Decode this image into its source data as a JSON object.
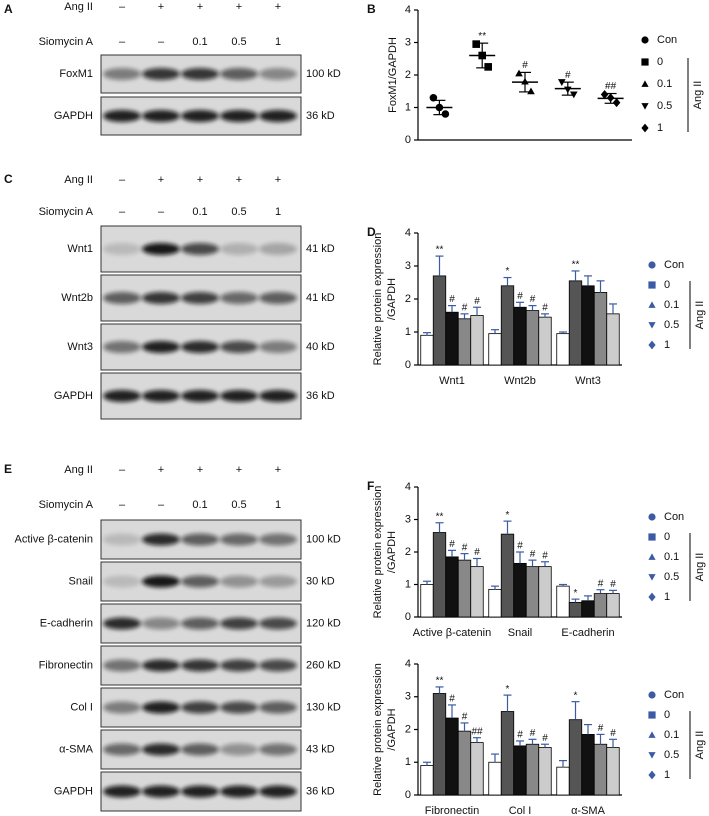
{
  "blots": [
    {
      "label": "A",
      "treatments": [
        {
          "name": "Ang II",
          "lanes": [
            "–",
            "+",
            "+",
            "+",
            "+"
          ]
        },
        {
          "name": "Siomycin A",
          "lanes": [
            "–",
            "–",
            "0.1",
            "0.5",
            "1"
          ]
        }
      ],
      "bands": [
        {
          "name": "FoxM1",
          "size": "100 kD"
        },
        {
          "name": "GAPDH",
          "size": "36 kD"
        }
      ]
    },
    {
      "label": "C",
      "treatments": [
        {
          "name": "Ang II",
          "lanes": [
            "–",
            "+",
            "+",
            "+",
            "+"
          ]
        },
        {
          "name": "Siomycin A",
          "lanes": [
            "–",
            "–",
            "0.1",
            "0.5",
            "1"
          ]
        }
      ],
      "bands": [
        {
          "name": "Wnt1",
          "size": "41 kD"
        },
        {
          "name": "Wnt2b",
          "size": "41 kD"
        },
        {
          "name": "Wnt3",
          "size": "40 kD"
        },
        {
          "name": "GAPDH",
          "size": "36 kD"
        }
      ]
    },
    {
      "label": "E",
      "treatments": [
        {
          "name": "Ang II",
          "lanes": [
            "–",
            "+",
            "+",
            "+",
            "+"
          ]
        },
        {
          "name": "Siomycin A",
          "lanes": [
            "–",
            "–",
            "0.1",
            "0.5",
            "1"
          ]
        }
      ],
      "bands": [
        {
          "name": "Active β-catenin",
          "size": "100 kD"
        },
        {
          "name": "Snail",
          "size": "30 kD"
        },
        {
          "name": "E-cadherin",
          "size": "120 kD"
        },
        {
          "name": "Fibronectin",
          "size": "260 kD"
        },
        {
          "name": "Col I",
          "size": "130 kD"
        },
        {
          "name": "α-SMA",
          "size": "43 kD"
        },
        {
          "name": "GAPDH",
          "size": "36 kD"
        }
      ]
    }
  ],
  "chart_data": [
    {
      "type": "dotplot",
      "label": "B",
      "ylabel": [
        "FoxM1/GAPDH"
      ],
      "categories": [
        null
      ],
      "ylim": [
        0,
        4
      ],
      "yticks": [
        0,
        1,
        2,
        3,
        4
      ],
      "marker_color": "#000000",
      "group_label": "Ang II",
      "series": [
        {
          "name": "Con",
          "marker": "circle",
          "color": "#000000",
          "values": [
            1.0
          ],
          "errors": [
            0.22
          ],
          "points": [
            [
              1.3,
              1.0,
              0.8
            ]
          ],
          "annotations": [
            null
          ]
        },
        {
          "name": "0",
          "marker": "square",
          "color": "#000000",
          "values": [
            2.6
          ],
          "errors": [
            0.38
          ],
          "points": [
            [
              2.95,
              2.6,
              2.25
            ]
          ],
          "annotations": [
            "**"
          ]
        },
        {
          "name": "0.1",
          "marker": "triangle-up",
          "color": "#000000",
          "values": [
            1.78
          ],
          "errors": [
            0.3
          ],
          "points": [
            [
              2.05,
              1.8,
              1.5
            ]
          ],
          "annotations": [
            "#"
          ]
        },
        {
          "name": "0.5",
          "marker": "triangle-down",
          "color": "#000000",
          "values": [
            1.58
          ],
          "errors": [
            0.2
          ],
          "points": [
            [
              1.78,
              1.55,
              1.4
            ]
          ],
          "annotations": [
            "#"
          ]
        },
        {
          "name": "1",
          "marker": "diamond",
          "color": "#000000",
          "values": [
            1.28
          ],
          "errors": [
            0.15
          ],
          "points": [
            [
              1.4,
              1.3,
              1.15
            ]
          ],
          "annotations": [
            "##"
          ]
        }
      ]
    },
    {
      "type": "bar",
      "label": "D",
      "ylabel": [
        "Relative protein expression",
        "/GAPDH"
      ],
      "categories": [
        "Wnt1",
        "Wnt2b",
        "Wnt3"
      ],
      "ylim": [
        0,
        4
      ],
      "yticks": [
        0,
        1,
        2,
        3,
        4
      ],
      "marker_color": "#3b5ba5",
      "group_label": "Ang II",
      "series": [
        {
          "name": "Con",
          "marker": "circle",
          "color": "#ffffff",
          "values": [
            0.9,
            0.95,
            0.95
          ],
          "errors": [
            0.08,
            0.12,
            0.05
          ],
          "annotations": [
            null,
            null,
            null
          ]
        },
        {
          "name": "0",
          "marker": "square",
          "color": "#555555",
          "values": [
            2.7,
            2.4,
            2.55
          ],
          "errors": [
            0.6,
            0.25,
            0.3
          ],
          "annotations": [
            "**",
            "*",
            "**"
          ]
        },
        {
          "name": "0.1",
          "marker": "triangle-up",
          "color": "#111111",
          "values": [
            1.6,
            1.75,
            2.4
          ],
          "errors": [
            0.2,
            0.15,
            0.3
          ],
          "annotations": [
            "#",
            "#",
            null
          ]
        },
        {
          "name": "0.5",
          "marker": "triangle-down",
          "color": "#888888",
          "values": [
            1.4,
            1.65,
            2.2
          ],
          "errors": [
            0.15,
            0.15,
            0.35
          ],
          "annotations": [
            "#",
            "#",
            null
          ]
        },
        {
          "name": "1",
          "marker": "diamond",
          "color": "#cccccc",
          "values": [
            1.5,
            1.45,
            1.55
          ],
          "errors": [
            0.25,
            0.1,
            0.3
          ],
          "annotations": [
            "#",
            "#",
            null
          ]
        }
      ]
    },
    {
      "type": "bar",
      "label": "F",
      "ylabel": [
        "Relative protein expression",
        "/GAPDH"
      ],
      "categories": [
        "Active β-catenin",
        "Snail",
        "E-cadherin"
      ],
      "ylim": [
        0,
        4
      ],
      "yticks": [
        0,
        1,
        2,
        3,
        4
      ],
      "marker_color": "#3b5ba5",
      "group_label": "Ang II",
      "series": [
        {
          "name": "Con",
          "marker": "circle",
          "color": "#ffffff",
          "values": [
            1.0,
            0.85,
            0.95
          ],
          "errors": [
            0.1,
            0.1,
            0.05
          ],
          "annotations": [
            null,
            null,
            null
          ]
        },
        {
          "name": "0",
          "marker": "square",
          "color": "#555555",
          "values": [
            2.6,
            2.55,
            0.45
          ],
          "errors": [
            0.3,
            0.4,
            0.1
          ],
          "annotations": [
            "**",
            "*",
            "*"
          ]
        },
        {
          "name": "0.1",
          "marker": "triangle-up",
          "color": "#111111",
          "values": [
            1.85,
            1.65,
            0.5
          ],
          "errors": [
            0.2,
            0.35,
            0.15
          ],
          "annotations": [
            "#",
            "#",
            null
          ]
        },
        {
          "name": "0.5",
          "marker": "triangle-down",
          "color": "#888888",
          "values": [
            1.75,
            1.55,
            0.72
          ],
          "errors": [
            0.2,
            0.2,
            0.12
          ],
          "annotations": [
            "#",
            "#",
            "#"
          ]
        },
        {
          "name": "1",
          "marker": "diamond",
          "color": "#cccccc",
          "values": [
            1.55,
            1.55,
            0.72
          ],
          "errors": [
            0.25,
            0.15,
            0.1
          ],
          "annotations": [
            "#",
            "#",
            "#"
          ]
        }
      ]
    },
    {
      "type": "bar",
      "ylabel": [
        "Relative protein expression",
        "/GAPDH"
      ],
      "categories": [
        "Fibronectin",
        "Col I",
        "α-SMA"
      ],
      "ylim": [
        0,
        4
      ],
      "yticks": [
        0,
        1,
        2,
        3,
        4
      ],
      "marker_color": "#3b5ba5",
      "group_label": "Ang II",
      "series": [
        {
          "name": "Con",
          "marker": "circle",
          "color": "#ffffff",
          "values": [
            0.9,
            1.0,
            0.85
          ],
          "errors": [
            0.1,
            0.25,
            0.2
          ],
          "annotations": [
            null,
            null,
            null
          ]
        },
        {
          "name": "0",
          "marker": "square",
          "color": "#555555",
          "values": [
            3.1,
            2.55,
            2.3
          ],
          "errors": [
            0.2,
            0.5,
            0.55
          ],
          "annotations": [
            "**",
            "*",
            "*"
          ]
        },
        {
          "name": "0.1",
          "marker": "triangle-up",
          "color": "#111111",
          "values": [
            2.35,
            1.5,
            1.85
          ],
          "errors": [
            0.4,
            0.15,
            0.3
          ],
          "annotations": [
            "#",
            "#",
            null
          ]
        },
        {
          "name": "0.5",
          "marker": "triangle-down",
          "color": "#888888",
          "values": [
            1.95,
            1.55,
            1.55
          ],
          "errors": [
            0.25,
            0.15,
            0.3
          ],
          "annotations": [
            "#",
            "#",
            "#"
          ]
        },
        {
          "name": "1",
          "marker": "diamond",
          "color": "#cccccc",
          "values": [
            1.6,
            1.45,
            1.45
          ],
          "errors": [
            0.15,
            0.1,
            0.25
          ],
          "annotations": [
            "##",
            "#",
            "#"
          ]
        }
      ]
    }
  ]
}
